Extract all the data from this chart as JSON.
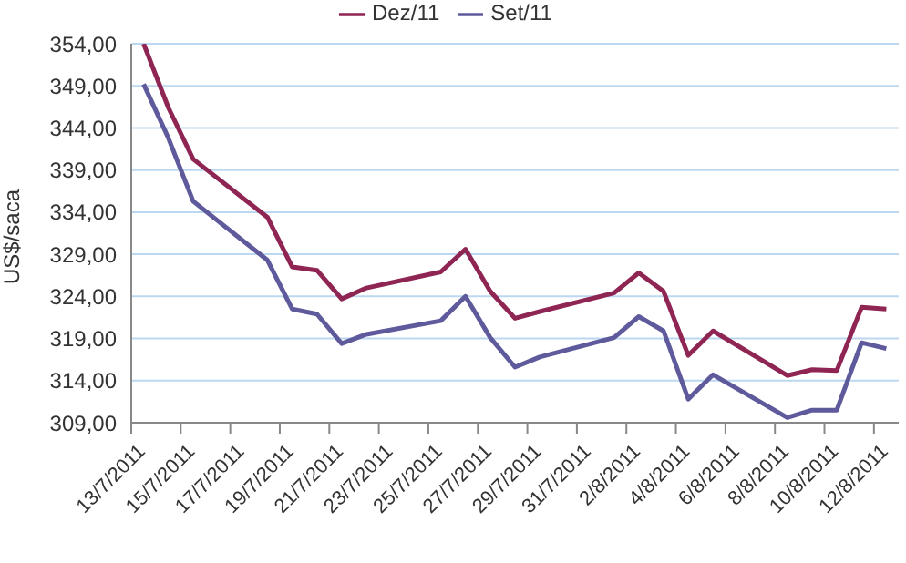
{
  "chart_data": {
    "type": "line",
    "ylabel": "US$/saca",
    "x": [
      "2011-07-13T12:00",
      "2011-07-14T12:00",
      "2011-07-15T12:00",
      "2011-07-18T12:00",
      "2011-07-19T12:00",
      "2011-07-20T12:00",
      "2011-07-21T12:00",
      "2011-07-22T12:00",
      "2011-07-25T12:00",
      "2011-07-26T12:00",
      "2011-07-27T12:00",
      "2011-07-28T12:00",
      "2011-07-29T12:00",
      "2011-08-01T12:00",
      "2011-08-02T12:00",
      "2011-08-03T12:00",
      "2011-08-04T12:00",
      "2011-08-05T12:00",
      "2011-08-08T12:00",
      "2011-08-09T12:00",
      "2011-08-10T12:00",
      "2011-08-11T12:00",
      "2011-08-12T12:00"
    ],
    "series": [
      {
        "name": "Set/11",
        "color": "#5e5a9c",
        "values": [
          349.2,
          342.8,
          335.3,
          328.3,
          322.5,
          321.9,
          318.4,
          319.5,
          321.1,
          324.0,
          319.1,
          315.6,
          316.8,
          319.1,
          321.6,
          319.9,
          311.8,
          314.7,
          309.6,
          310.5,
          310.5,
          318.5,
          317.8
        ]
      },
      {
        "name": "Dez/11",
        "color": "#8e2552",
        "values": [
          354.0,
          346.4,
          340.3,
          333.4,
          327.5,
          327.1,
          323.7,
          325.0,
          326.9,
          329.6,
          324.6,
          321.4,
          322.2,
          324.4,
          326.8,
          324.6,
          317.0,
          319.9,
          314.6,
          315.3,
          315.2,
          322.7,
          322.5
        ]
      }
    ],
    "xlim": [
      "2011-07-13",
      "2011-08-13"
    ],
    "xticks": [
      {
        "value": "2011-07-13",
        "label": "13/7/2011"
      },
      {
        "value": "2011-07-15",
        "label": "15/7/2011"
      },
      {
        "value": "2011-07-17",
        "label": "17/7/2011"
      },
      {
        "value": "2011-07-19",
        "label": "19/7/2011"
      },
      {
        "value": "2011-07-21",
        "label": "21/7/2011"
      },
      {
        "value": "2011-07-23",
        "label": "23/7/2011"
      },
      {
        "value": "2011-07-25",
        "label": "25/7/2011"
      },
      {
        "value": "2011-07-27",
        "label": "27/7/2011"
      },
      {
        "value": "2011-07-29",
        "label": "29/7/2011"
      },
      {
        "value": "2011-07-31",
        "label": "31/7/2011"
      },
      {
        "value": "2011-08-02",
        "label": "2/8/2011"
      },
      {
        "value": "2011-08-04",
        "label": "4/8/2011"
      },
      {
        "value": "2011-08-06",
        "label": "6/8/2011"
      },
      {
        "value": "2011-08-08",
        "label": "8/8/2011"
      },
      {
        "value": "2011-08-10",
        "label": "10/8/2011"
      },
      {
        "value": "2011-08-12",
        "label": "12/8/2011"
      }
    ],
    "ylim": [
      309,
      354
    ],
    "yticks": [
      {
        "value": 309,
        "label": "309,00"
      },
      {
        "value": 314,
        "label": "314,00"
      },
      {
        "value": 319,
        "label": "319,00"
      },
      {
        "value": 324,
        "label": "324,00"
      },
      {
        "value": 329,
        "label": "329,00"
      },
      {
        "value": 334,
        "label": "334,00"
      },
      {
        "value": 339,
        "label": "339,00"
      },
      {
        "value": 344,
        "label": "344,00"
      },
      {
        "value": 349,
        "label": "349,00"
      },
      {
        "value": 354,
        "label": "354,00"
      }
    ],
    "grid": "y",
    "legend": "top",
    "marker": "none",
    "line_style": "solid"
  }
}
